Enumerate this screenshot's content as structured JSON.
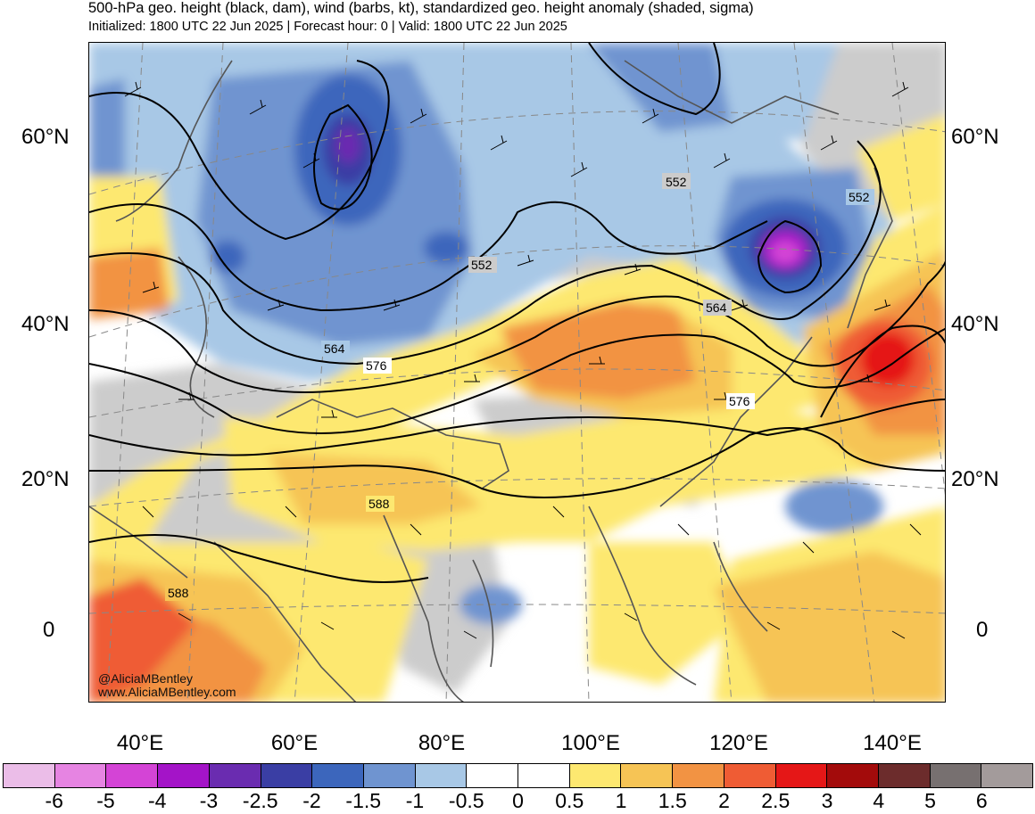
{
  "header": {
    "title": "500-hPa geo. height (black, dam), wind (barbs, kt), standardized geo. height anomaly (shaded, sigma)",
    "subtitle": "Initialized: 1800 UTC 22 Jun 2025 | Forecast hour: 0 | Valid: 1800 UTC 22 Jun 2025"
  },
  "map": {
    "lat_labels": [
      "60°N",
      "40°N",
      "20°N",
      "0"
    ],
    "lon_labels": [
      "40°E",
      "60°E",
      "80°E",
      "100°E",
      "120°E",
      "140°E"
    ],
    "contour_labels": [
      "552",
      "552",
      "552",
      "564",
      "564",
      "576",
      "576",
      "588",
      "588"
    ],
    "credit_handle": "@AliciaMBentley",
    "credit_url": "www.AliciaMBentley.com"
  },
  "colorbar": {
    "labels": [
      "-6",
      "-5",
      "-4",
      "-3",
      "-2.5",
      "-2",
      "-1.5",
      "-1",
      "-0.5",
      "0",
      "0.5",
      "1",
      "1.5",
      "2",
      "2.5",
      "3",
      "4",
      "5",
      "6"
    ],
    "colors": [
      "#ebbde8",
      "#e684e2",
      "#d444d6",
      "#a414c8",
      "#6a2cb0",
      "#3a3ea4",
      "#3c66bc",
      "#6f94d0",
      "#a8c8e6",
      "#ffffff",
      "#ffffff",
      "#fde870",
      "#f6c455",
      "#f29343",
      "#ef5c34",
      "#e51717",
      "#a30b0b",
      "#6c2c2c",
      "#777070",
      "#a39b9b"
    ]
  }
}
